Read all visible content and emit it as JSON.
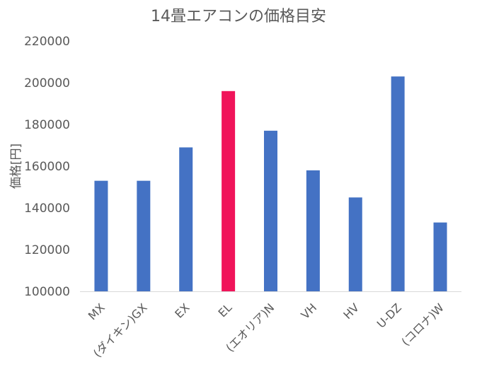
{
  "chart_data": {
    "type": "bar",
    "title": "14畳エアコンの価格目安",
    "xlabel": "",
    "ylabel": "価格[円]",
    "ylim": [
      100000,
      220000
    ],
    "yticks": [
      100000,
      120000,
      140000,
      160000,
      180000,
      200000,
      220000
    ],
    "grid": false,
    "legend": "none",
    "categories": [
      "MX",
      "(ダイキン)GX",
      "EX",
      "EL",
      "(エオリア)N",
      "VH",
      "HV",
      "U-DZ",
      "(コロナ)W"
    ],
    "series": [
      {
        "values": [
          153000,
          153000,
          169000,
          196000,
          177000,
          158000,
          145000,
          203000,
          133000
        ]
      }
    ],
    "colors": {
      "default": "#4472C4",
      "highlight": "#F0145A",
      "highlight_category": "EL",
      "axis": "#D9D9D9",
      "text": "#595959"
    }
  }
}
